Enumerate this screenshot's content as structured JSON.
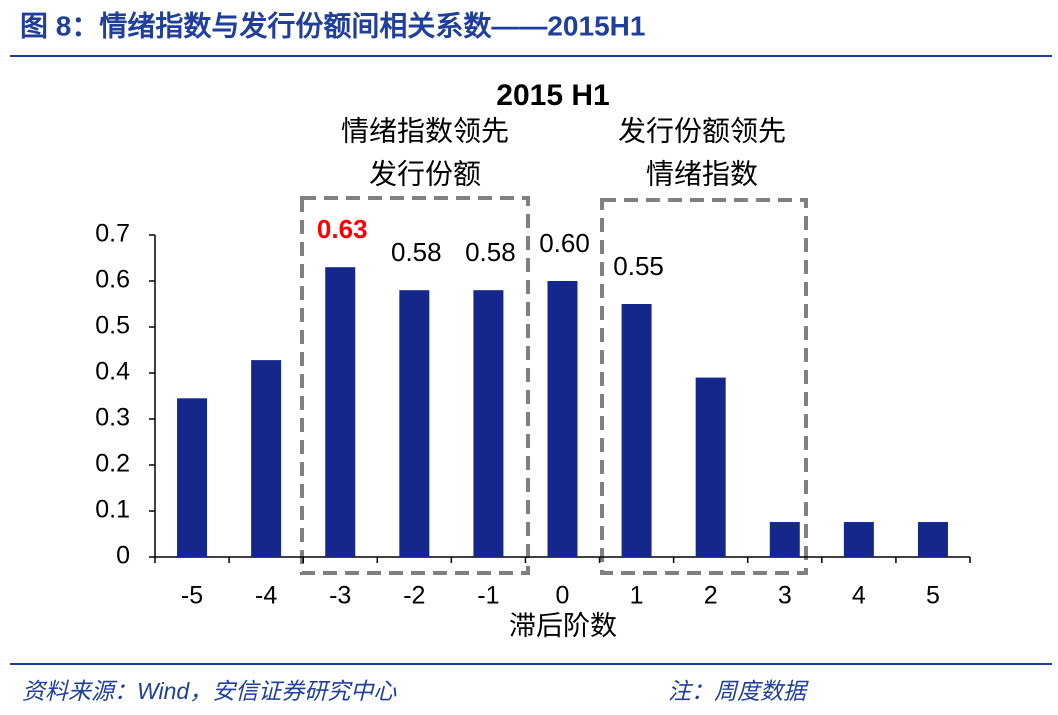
{
  "header": {
    "title": "图 8：情绪指数与发行份额间相关系数——2015H1"
  },
  "chart_data": {
    "type": "bar",
    "title": "2015 H1",
    "annotations": [
      [
        "情绪指数领先",
        "发行份额"
      ],
      [
        "发行份额领先",
        "情绪指数"
      ]
    ],
    "x_label": "滞后阶数",
    "categories": [
      "-5",
      "-4",
      "-3",
      "-2",
      "-1",
      "0",
      "1",
      "2",
      "3",
      "4",
      "5"
    ],
    "values": [
      0.345,
      0.428,
      0.63,
      0.58,
      0.58,
      0.6,
      0.55,
      0.39,
      0.076,
      0.076,
      0.076
    ],
    "value_labels": [
      null,
      null,
      "0.63",
      "0.58",
      "0.58",
      "0.60",
      "0.55",
      null,
      null,
      null,
      null
    ],
    "highlight": {
      "index": 2,
      "color": "#ff0000"
    },
    "color": "#14288c",
    "ylim": [
      0,
      0.7
    ],
    "yticks": [
      0,
      0.1,
      0.2,
      0.3,
      0.4,
      0.5,
      0.6,
      0.7
    ],
    "grid": false
  },
  "footer": {
    "source": "资料来源：Wind，安信证券研究中心",
    "note": "注：周度数据"
  }
}
